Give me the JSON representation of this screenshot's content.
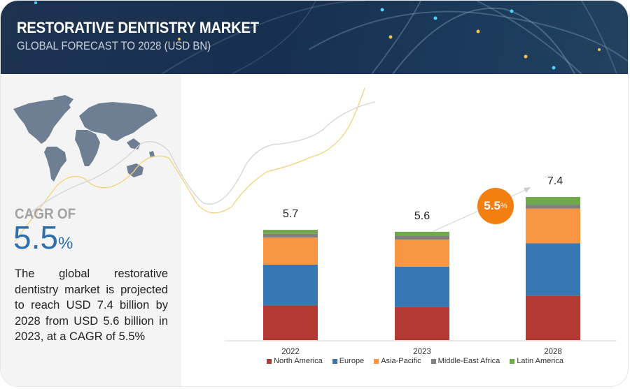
{
  "header": {
    "title": "RESTORATIVE DENTISTRY MARKET",
    "subtitle": "GLOBAL FORECAST TO 2028 (USD BN)"
  },
  "summary": {
    "cagr_label": "CAGR OF",
    "cagr_value": "5.5",
    "cagr_unit": "%",
    "description": "The global restorative dentistry market is projected to reach USD 7.4 billion by 2028 from USD 5.6 billion in 2023, at a CAGR of 5.5%",
    "map_icon": "world-map-icon"
  },
  "growth_badge": {
    "value": "5.5",
    "unit": "%"
  },
  "colors": {
    "North America": "#b33a32",
    "Europe": "#3777b3",
    "Asia-Pacific": "#f89644",
    "Middle-East Africa": "#7f7f7f",
    "Latin America": "#70a84c",
    "badge": "#f47f11",
    "cagr": "#2f6fad"
  },
  "chart_data": {
    "type": "bar",
    "stacked": true,
    "title": "RESTORATIVE DENTISTRY MARKET",
    "subtitle": "GLOBAL FORECAST TO 2028 (USD BN)",
    "xlabel": "",
    "ylabel": "",
    "categories": [
      "2022",
      "2023",
      "2028"
    ],
    "totals": [
      "5.7",
      "5.6",
      "7.4"
    ],
    "series": [
      {
        "name": "North America",
        "values": [
          1.8,
          1.7,
          2.3
        ]
      },
      {
        "name": "Europe",
        "values": [
          2.1,
          2.1,
          2.7
        ]
      },
      {
        "name": "Asia-Pacific",
        "values": [
          1.4,
          1.4,
          1.8
        ]
      },
      {
        "name": "Middle-East Africa",
        "values": [
          0.2,
          0.2,
          0.2
        ]
      },
      {
        "name": "Latin America",
        "values": [
          0.2,
          0.2,
          0.4
        ]
      }
    ],
    "ylim": [
      0,
      7.4
    ],
    "grid": false,
    "legend_position": "bottom",
    "annotation": "5.5%"
  }
}
